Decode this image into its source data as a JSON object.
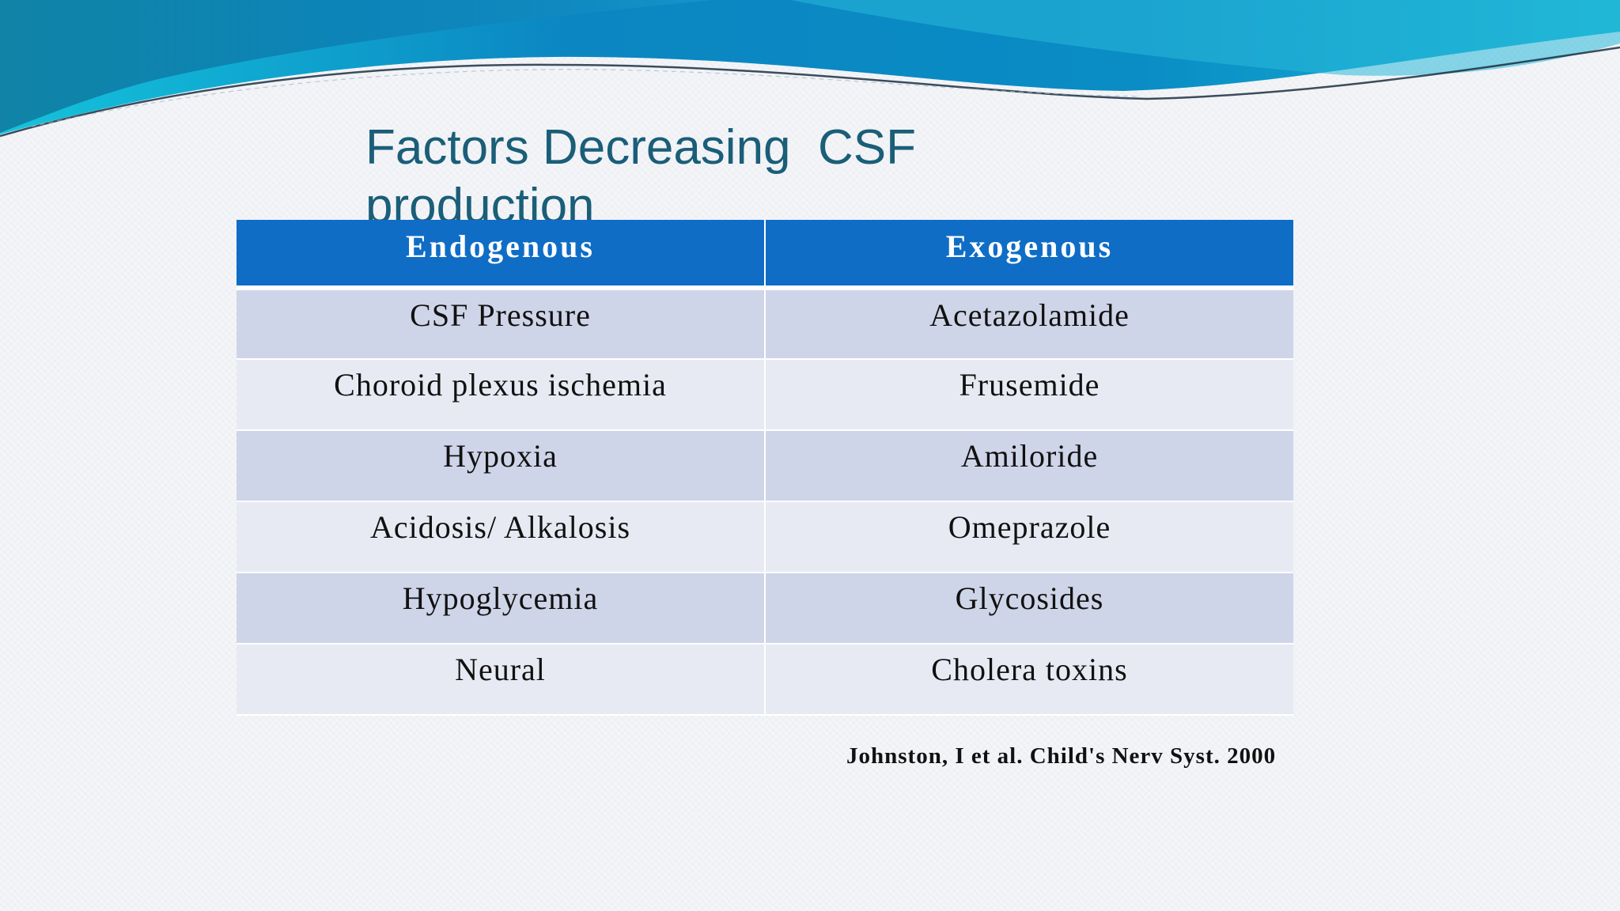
{
  "slide": {
    "title": "Factors Decreasing  CSF production",
    "table": {
      "headers": [
        "Endogenous",
        "Exogenous"
      ],
      "rows": [
        [
          "CSF Pressure",
          "Acetazolamide"
        ],
        [
          "Choroid plexus ischemia",
          "Frusemide"
        ],
        [
          "Hypoxia",
          "Amiloride"
        ],
        [
          "Acidosis/ Alkalosis",
          "Omeprazole"
        ],
        [
          "Hypoglycemia",
          "Glycosides"
        ],
        [
          "Neural",
          "Cholera toxins"
        ]
      ]
    },
    "citation": "Johnston, I et al. Child's Nerv Syst. 2000"
  },
  "colors": {
    "title": "#1a5e78",
    "header_bg": "#0f6dc6",
    "row_odd_bg": "#cfd5e8",
    "row_even_bg": "#e8eaf3",
    "wave_primary": "#0a8fc6",
    "wave_accent": "#1fc4dc"
  }
}
